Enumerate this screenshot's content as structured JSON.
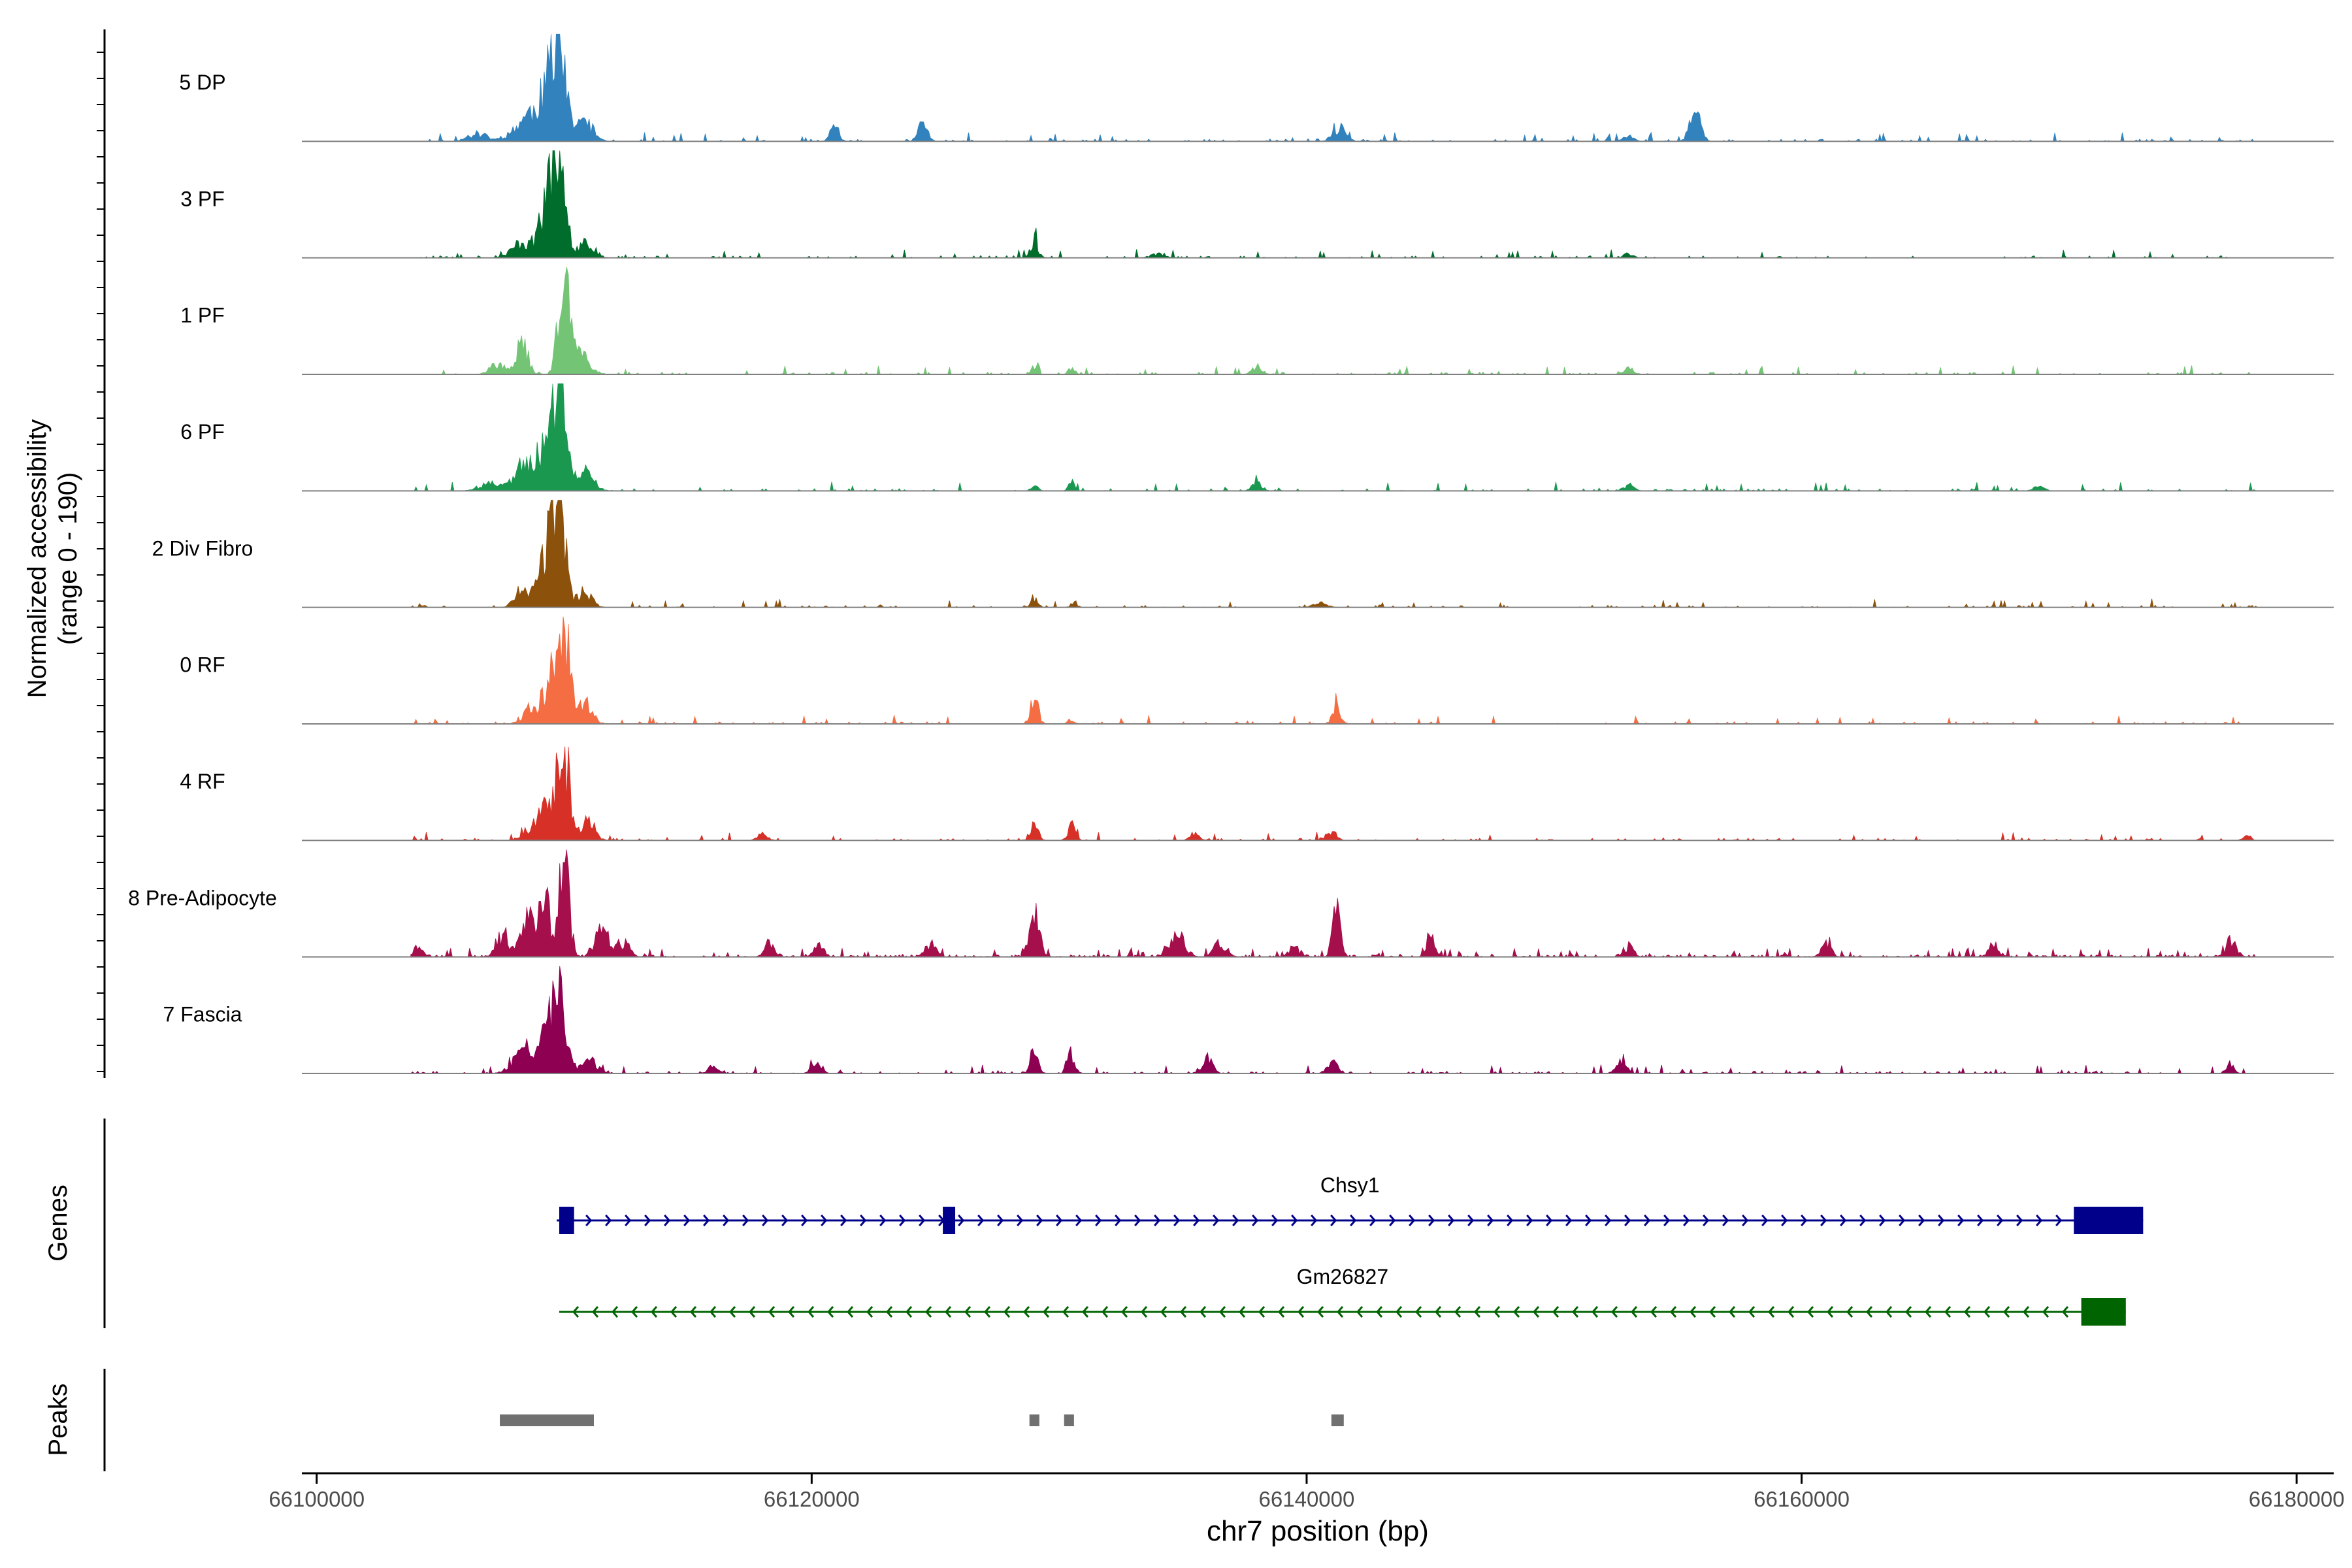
{
  "chart_data": {
    "type": "area",
    "title": "",
    "ylabel_line1": "Normalized accessibility",
    "ylabel_line2": "(range 0 - 190)",
    "xlabel": "chr7 position (bp)",
    "xlim": [
      66099400,
      66181500
    ],
    "xticks": [
      66100000,
      66120000,
      66140000,
      66160000,
      66180000
    ],
    "xtick_labels": [
      "66100000",
      "66120000",
      "66140000",
      "66160000",
      "66180000"
    ],
    "ylim": [
      0,
      190
    ],
    "signal_range": [
      66103800,
      66178500
    ],
    "tracks": [
      {
        "name": "5 DP",
        "color": "#3182bd",
        "noise": 0.05,
        "seed": 11,
        "peaks": [
          [
            66109800,
            190,
            250
          ],
          [
            66109400,
            90,
            400
          ],
          [
            66108500,
            45,
            500
          ],
          [
            66110800,
            40,
            350
          ],
          [
            66106500,
            15,
            400
          ],
          [
            66120900,
            25,
            180
          ],
          [
            66124500,
            35,
            180
          ],
          [
            66141300,
            28,
            250
          ],
          [
            66155700,
            55,
            220
          ],
          [
            66153000,
            10,
            200
          ]
        ]
      },
      {
        "name": "3 PF",
        "color": "#006d2c",
        "noise": 0.04,
        "seed": 23,
        "peaks": [
          [
            66109800,
            185,
            260
          ],
          [
            66109400,
            110,
            350
          ],
          [
            66108300,
            30,
            400
          ],
          [
            66110900,
            35,
            300
          ],
          [
            66129000,
            35,
            150
          ],
          [
            66134000,
            8,
            300
          ],
          [
            66153000,
            8,
            200
          ]
        ]
      },
      {
        "name": "1 PF",
        "color": "#74c476",
        "noise": 0.04,
        "seed": 37,
        "peaks": [
          [
            66110000,
            210,
            220
          ],
          [
            66108300,
            70,
            220
          ],
          [
            66107300,
            20,
            300
          ],
          [
            66110700,
            35,
            350
          ],
          [
            66129000,
            15,
            120
          ],
          [
            66130500,
            15,
            120
          ],
          [
            66138000,
            15,
            200
          ],
          [
            66153000,
            12,
            200
          ]
        ]
      },
      {
        "name": "6 PF",
        "color": "#1a9850",
        "noise": 0.04,
        "seed": 41,
        "peaks": [
          [
            66109800,
            180,
            260
          ],
          [
            66109300,
            90,
            400
          ],
          [
            66108300,
            45,
            350
          ],
          [
            66110800,
            40,
            350
          ],
          [
            66107000,
            15,
            400
          ],
          [
            66129000,
            15,
            120
          ],
          [
            66130500,
            15,
            120
          ],
          [
            66138000,
            15,
            200
          ],
          [
            66153000,
            12,
            200
          ],
          [
            66169600,
            10,
            200
          ]
        ]
      },
      {
        "name": "2 Div Fibro",
        "color": "#8c510a",
        "noise": 0.04,
        "seed": 53,
        "peaks": [
          [
            66109800,
            210,
            220
          ],
          [
            66109400,
            120,
            350
          ],
          [
            66108300,
            30,
            300
          ],
          [
            66110800,
            30,
            300
          ],
          [
            66129000,
            18,
            120
          ],
          [
            66130600,
            12,
            120
          ],
          [
            66140500,
            8,
            300
          ]
        ]
      },
      {
        "name": "0 RF",
        "color": "#f46d43",
        "noise": 0.035,
        "seed": 67,
        "peaks": [
          [
            66110000,
            190,
            220
          ],
          [
            66109500,
            90,
            350
          ],
          [
            66110800,
            45,
            300
          ],
          [
            66108600,
            25,
            300
          ],
          [
            66129000,
            50,
            150
          ],
          [
            66141200,
            45,
            150
          ],
          [
            66130500,
            10,
            120
          ]
        ]
      },
      {
        "name": "4 RF",
        "color": "#d73027",
        "noise": 0.04,
        "seed": 79,
        "peaks": [
          [
            66110000,
            160,
            260
          ],
          [
            66109400,
            70,
            350
          ],
          [
            66111000,
            40,
            250
          ],
          [
            66108600,
            20,
            300
          ],
          [
            66129000,
            40,
            150
          ],
          [
            66130500,
            30,
            150
          ],
          [
            66141000,
            20,
            200
          ],
          [
            66118000,
            12,
            200
          ],
          [
            66135500,
            12,
            200
          ],
          [
            66178000,
            10,
            150
          ]
        ]
      },
      {
        "name": "8 Pre-Adipocyte",
        "color": "#a50f4b",
        "noise": 0.11,
        "seed": 97,
        "peaks": [
          [
            66110000,
            190,
            200
          ],
          [
            66109200,
            110,
            250
          ],
          [
            66108500,
            70,
            250
          ],
          [
            66107500,
            40,
            250
          ],
          [
            66111500,
            65,
            250
          ],
          [
            66112400,
            30,
            250
          ],
          [
            66129000,
            110,
            180
          ],
          [
            66141200,
            90,
            150
          ],
          [
            66145000,
            40,
            150
          ],
          [
            66118300,
            30,
            200
          ],
          [
            66120300,
            20,
            200
          ],
          [
            66124800,
            25,
            200
          ],
          [
            66134800,
            40,
            300
          ],
          [
            66136500,
            30,
            250
          ],
          [
            66139500,
            20,
            200
          ],
          [
            66104100,
            20,
            200
          ],
          [
            66161000,
            25,
            200
          ],
          [
            66167800,
            20,
            200
          ],
          [
            66177400,
            25,
            200
          ],
          [
            66153000,
            20,
            200
          ]
        ]
      },
      {
        "name": "7 Fascia",
        "color": "#8e0152",
        "noise": 0.06,
        "seed": 113,
        "peaks": [
          [
            66109800,
            150,
            260
          ],
          [
            66109200,
            70,
            400
          ],
          [
            66108300,
            40,
            400
          ],
          [
            66111000,
            30,
            300
          ],
          [
            66129000,
            60,
            150
          ],
          [
            66130500,
            40,
            150
          ],
          [
            66136000,
            30,
            200
          ],
          [
            66141000,
            25,
            200
          ],
          [
            66152700,
            30,
            200
          ],
          [
            66177300,
            20,
            150
          ],
          [
            66116000,
            15,
            200
          ],
          [
            66120200,
            25,
            200
          ]
        ]
      }
    ],
    "genes": [
      {
        "name": "Chsy1",
        "color": "#00008b",
        "strand": "+",
        "start": 66109700,
        "end": 66173800,
        "exons": [
          [
            66109800,
            66110400
          ],
          [
            66125300,
            66125800
          ],
          [
            66171000,
            66173800
          ]
        ]
      },
      {
        "name": "Gm26827",
        "color": "#006400",
        "strand": "-",
        "start": 66109800,
        "end": 66173100,
        "exons": [
          [
            66171300,
            66173100
          ]
        ]
      }
    ],
    "peaks": [
      [
        66107400,
        66111200
      ],
      [
        66128800,
        66129200
      ],
      [
        66130200,
        66130600
      ],
      [
        66141000,
        66141500
      ]
    ],
    "panel_labels": {
      "genes": "Genes",
      "peaks": "Peaks"
    }
  },
  "colors": {
    "axis": "#000000",
    "baseline": "#808080",
    "peak_bar": "#707070",
    "tick_text": "#4d4d4d"
  }
}
